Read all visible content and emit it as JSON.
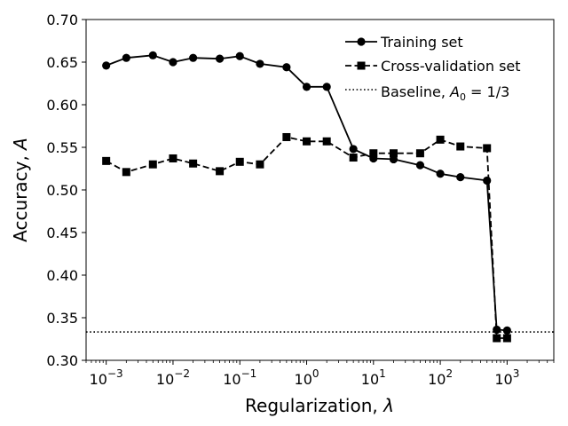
{
  "chart_data": {
    "type": "line",
    "xlabel": "Regularization, λ",
    "xlabel_text": "Regularization, ",
    "xlabel_symbol": "λ",
    "ylabel_text": "Accuracy, ",
    "ylabel_symbol": "A",
    "xscale": "log",
    "xlim": [
      0.0005,
      5000
    ],
    "ylim": [
      0.3,
      0.7
    ],
    "x_ticks": [
      0.001,
      0.01,
      0.1,
      1,
      10,
      100,
      1000
    ],
    "x_tick_labels": [
      {
        "base": "10",
        "exp": "−3"
      },
      {
        "base": "10",
        "exp": "−2"
      },
      {
        "base": "10",
        "exp": "−1"
      },
      {
        "base": "10",
        "exp": "0"
      },
      {
        "base": "10",
        "exp": "1"
      },
      {
        "base": "10",
        "exp": "2"
      },
      {
        "base": "10",
        "exp": "3"
      }
    ],
    "y_ticks": [
      0.3,
      0.35,
      0.4,
      0.45,
      0.5,
      0.55,
      0.6,
      0.65,
      0.7
    ],
    "y_tick_labels": [
      "0.30",
      "0.35",
      "0.40",
      "0.45",
      "0.50",
      "0.55",
      "0.60",
      "0.65",
      "0.70"
    ],
    "grid": false,
    "legend_position": "top-right",
    "x": [
      0.001,
      0.002,
      0.005,
      0.01,
      0.02,
      0.05,
      0.1,
      0.2,
      0.5,
      1,
      2,
      5,
      10,
      20,
      50,
      100,
      200,
      500,
      700,
      1000
    ],
    "series": [
      {
        "name": "Training set",
        "style": "solid",
        "marker": "circle",
        "color": "#000000",
        "values": [
          0.646,
          0.655,
          0.658,
          0.65,
          0.655,
          0.654,
          0.657,
          0.648,
          0.644,
          0.621,
          0.621,
          0.548,
          0.537,
          0.536,
          0.529,
          0.519,
          0.515,
          0.511,
          0.336,
          0.335
        ]
      },
      {
        "name": "Cross-validation set",
        "style": "dashed",
        "marker": "square",
        "color": "#000000",
        "values": [
          0.534,
          0.521,
          0.53,
          0.537,
          0.531,
          0.522,
          0.533,
          0.53,
          0.562,
          0.557,
          0.557,
          0.538,
          0.543,
          0.543,
          0.543,
          0.559,
          0.551,
          0.549,
          0.326,
          0.326
        ]
      }
    ],
    "baseline": {
      "value": 0.3333,
      "style": "dotted",
      "color": "#000000",
      "label_prefix": "Baseline, ",
      "label_math_symbol": "A",
      "label_math_sub": "0",
      "label_math_rest": " = 1/3"
    }
  }
}
